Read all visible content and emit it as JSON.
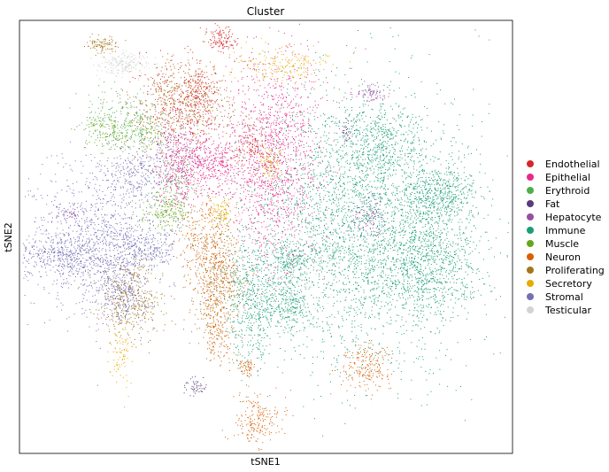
{
  "chart_data": {
    "type": "scatter",
    "title": "Cluster",
    "xlabel": "tSNE1",
    "ylabel": "tSNE2",
    "xlim": [
      -60,
      60
    ],
    "ylim": [
      -45,
      45
    ],
    "grid": false,
    "legend_position": "right",
    "series": [
      {
        "name": "Endothelial",
        "color": "#d62728"
      },
      {
        "name": "Epithelial",
        "color": "#e7298a"
      },
      {
        "name": "Erythroid",
        "color": "#4daf4a"
      },
      {
        "name": "Fat",
        "color": "#5b3a7e"
      },
      {
        "name": "Hepatocyte",
        "color": "#984ea3"
      },
      {
        "name": "Immune",
        "color": "#1b9e77"
      },
      {
        "name": "Muscle",
        "color": "#66a61e"
      },
      {
        "name": "Neuron",
        "color": "#d95f02"
      },
      {
        "name": "Proliferating",
        "color": "#a6761d"
      },
      {
        "name": "Secretory",
        "color": "#e6ab02"
      },
      {
        "name": "Stromal",
        "color": "#7570b3"
      },
      {
        "name": "Testicular",
        "color": "#d3d3d3"
      }
    ],
    "clusters": [
      {
        "series": "Immune",
        "cx": 22,
        "cy": 2,
        "sx": 13,
        "sy": 14,
        "n": 3200
      },
      {
        "series": "Immune",
        "cx": 40,
        "cy": -5,
        "sx": 6,
        "sy": 6,
        "n": 800
      },
      {
        "series": "Immune",
        "cx": 42,
        "cy": 9,
        "sx": 5,
        "sy": 3,
        "n": 500
      },
      {
        "series": "Immune",
        "cx": -4,
        "cy": -13,
        "sx": 3,
        "sy": 7,
        "n": 500
      },
      {
        "series": "Immune",
        "cx": 5,
        "cy": -14,
        "sx": 3,
        "sy": 3,
        "n": 250
      },
      {
        "series": "Immune",
        "cx": 27,
        "cy": 20,
        "sx": 5,
        "sy": 4,
        "n": 400
      },
      {
        "series": "Immune",
        "cx": 6,
        "cy": -5,
        "sx": 3,
        "sy": 2,
        "n": 200
      },
      {
        "series": "Epithelial",
        "cx": 1,
        "cy": 16,
        "sx": 6,
        "sy": 11,
        "n": 1400
      },
      {
        "series": "Epithelial",
        "cx": -18,
        "cy": 17,
        "sx": 3,
        "sy": 3,
        "n": 250
      },
      {
        "series": "Epithelial",
        "cx": -22,
        "cy": 12,
        "sx": 3,
        "sy": 3,
        "n": 200
      },
      {
        "series": "Epithelial",
        "cx": -12,
        "cy": 15,
        "sx": 2.5,
        "sy": 2.5,
        "n": 200
      },
      {
        "series": "Endothelial",
        "cx": -22,
        "cy": 27,
        "sx": 5,
        "sy": 5,
        "n": 400
      },
      {
        "series": "Endothelial",
        "cx": -16,
        "cy": 30,
        "sx": 2,
        "sy": 2.5,
        "n": 150
      },
      {
        "series": "Endothelial",
        "cx": -11,
        "cy": 41,
        "sx": 1.8,
        "sy": 1.3,
        "n": 120
      },
      {
        "series": "Endothelial",
        "cx": -4,
        "cy": 19,
        "sx": 3,
        "sy": 3,
        "n": 150
      },
      {
        "series": "Proliferating",
        "cx": -20,
        "cy": 29,
        "sx": 6,
        "sy": 4,
        "n": 400
      },
      {
        "series": "Proliferating",
        "cx": -33,
        "cy": -13,
        "sx": 4,
        "sy": 4,
        "n": 400
      },
      {
        "series": "Proliferating",
        "cx": -12,
        "cy": -10,
        "sx": 3,
        "sy": 5,
        "n": 300
      },
      {
        "series": "Proliferating",
        "cx": -40,
        "cy": 40,
        "sx": 2,
        "sy": 1,
        "n": 100
      },
      {
        "series": "Stromal",
        "cx": -40,
        "cy": 0,
        "sx": 9,
        "sy": 8,
        "n": 1200
      },
      {
        "series": "Stromal",
        "cx": -50,
        "cy": -4,
        "sx": 7,
        "sy": 2,
        "n": 400
      },
      {
        "series": "Stromal",
        "cx": -35,
        "cy": -12,
        "sx": 3,
        "sy": 3,
        "n": 250
      },
      {
        "series": "Stromal",
        "cx": -32,
        "cy": 14,
        "sx": 4,
        "sy": 3,
        "n": 250
      },
      {
        "series": "Stromal",
        "cx": -30,
        "cy": -2,
        "sx": 4,
        "sy": 2,
        "n": 200
      },
      {
        "series": "Neuron",
        "cx": -12,
        "cy": -8,
        "sx": 3,
        "sy": 6,
        "n": 350
      },
      {
        "series": "Neuron",
        "cx": -2,
        "cy": -38,
        "sx": 3,
        "sy": 2.5,
        "n": 200
      },
      {
        "series": "Neuron",
        "cx": 24,
        "cy": -27,
        "sx": 3,
        "sy": 2.5,
        "n": 200
      },
      {
        "series": "Neuron",
        "cx": -12,
        "cy": -21,
        "sx": 2,
        "sy": 3,
        "n": 120
      },
      {
        "series": "Neuron",
        "cx": -5,
        "cy": -27,
        "sx": 1.5,
        "sy": 1,
        "n": 60
      },
      {
        "series": "Neuron",
        "cx": -16,
        "cy": 1,
        "sx": 3,
        "sy": 4,
        "n": 200
      },
      {
        "series": "Secretory",
        "cx": 4,
        "cy": 36,
        "sx": 6,
        "sy": 2,
        "n": 200
      },
      {
        "series": "Secretory",
        "cx": -11,
        "cy": 5,
        "sx": 1.5,
        "sy": 1.5,
        "n": 100
      },
      {
        "series": "Secretory",
        "cx": -35,
        "cy": -23,
        "sx": 1.5,
        "sy": 4,
        "n": 100
      },
      {
        "series": "Secretory",
        "cx": 1,
        "cy": 16,
        "sx": 1.5,
        "sy": 2,
        "n": 80
      },
      {
        "series": "Erythroid",
        "cx": -35,
        "cy": 24,
        "sx": 5,
        "sy": 3,
        "n": 250
      },
      {
        "series": "Erythroid",
        "cx": -22,
        "cy": 12,
        "sx": 3,
        "sy": 3,
        "n": 120
      },
      {
        "series": "Muscle",
        "cx": -24,
        "cy": 5,
        "sx": 3,
        "sy": 2,
        "n": 200
      },
      {
        "series": "Muscle",
        "cx": -38,
        "cy": 22,
        "sx": 4,
        "sy": 2,
        "n": 150
      },
      {
        "series": "Muscle",
        "cx": -28,
        "cy": 22,
        "sx": 2,
        "sy": 2,
        "n": 80
      },
      {
        "series": "Hepatocyte",
        "cx": -22,
        "cy": 18,
        "sx": 3,
        "sy": 3,
        "n": 150
      },
      {
        "series": "Hepatocyte",
        "cx": 25,
        "cy": 4,
        "sx": 2,
        "sy": 2,
        "n": 100
      },
      {
        "series": "Hepatocyte",
        "cx": 25,
        "cy": 30,
        "sx": 2,
        "sy": 1,
        "n": 80
      },
      {
        "series": "Hepatocyte",
        "cx": -48,
        "cy": 5,
        "sx": 1.5,
        "sy": 1,
        "n": 40
      },
      {
        "series": "Fat",
        "cx": -17,
        "cy": -31,
        "sx": 1.5,
        "sy": 1,
        "n": 50
      },
      {
        "series": "Fat",
        "cx": 20,
        "cy": 22,
        "sx": 1,
        "sy": 1,
        "n": 30
      },
      {
        "series": "Testicular",
        "cx": -35,
        "cy": 36,
        "sx": 3,
        "sy": 1.2,
        "n": 200
      },
      {
        "series": "Testicular",
        "cx": 5,
        "cy": -5,
        "sx": 8,
        "sy": 6,
        "n": 150
      }
    ]
  }
}
